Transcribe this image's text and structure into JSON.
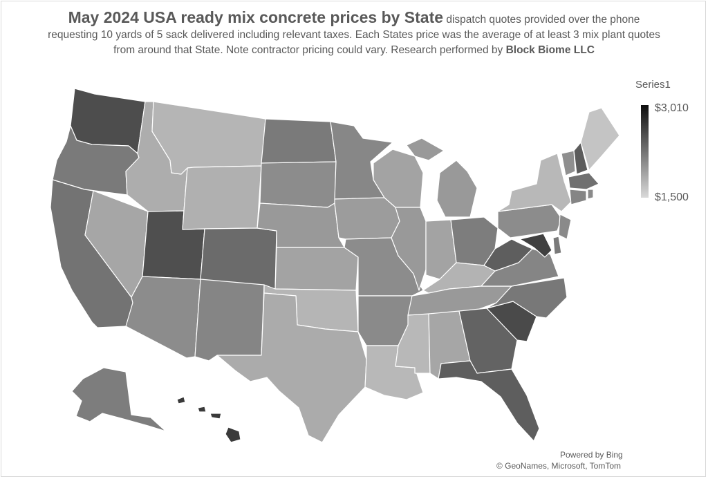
{
  "title": {
    "main": "May 2024 USA ready mix concrete prices by State",
    "sub_line1": " dispatch quotes provided over the phone",
    "sub_line2": "requesting 10 yards of 5 sack delivered including relevant taxes. Each States price was the average of at least 3 mix plant quotes",
    "sub_line3": "from around that State. Note contractor pricing could vary. Research performed by ",
    "brand": "Block Biome LLC"
  },
  "legend": {
    "series_name": "Series1",
    "max_label": "$3,010",
    "min_label": "$1,500",
    "max_color": "#0d0d0d",
    "min_color": "#d9d9d9"
  },
  "credits": {
    "line1": "Powered by Bing",
    "line2": "© GeoNames, Microsoft, TomTom"
  },
  "state_colors": {
    "WA": "#4d4d4d",
    "OR": "#7a7a7a",
    "CA": "#737373",
    "ID": "#adadad",
    "NV": "#a6a6a6",
    "UT": "#4f4f4f",
    "AZ": "#8c8c8c",
    "MT": "#b5b5b5",
    "WY": "#b0b0b0",
    "CO": "#6b6b6b",
    "NM": "#858585",
    "ND": "#7a7a7a",
    "SD": "#8c8c8c",
    "NE": "#999999",
    "KS": "#a3a3a3",
    "OK": "#b5b5b5",
    "TX": "#ababab",
    "MN": "#878787",
    "IA": "#9c9c9c",
    "MO": "#8c8c8c",
    "AR": "#8a8a8a",
    "LA": "#b8b8b8",
    "WI": "#a3a3a3",
    "IL": "#999999",
    "MI": "#999999",
    "IN": "#a3a3a3",
    "OH": "#7d7d7d",
    "KY": "#b3b3b3",
    "TN": "#999999",
    "MS": "#b8b8b8",
    "AL": "#a6a6a6",
    "GA": "#636363",
    "FL": "#5e5e5e",
    "SC": "#4a4a4a",
    "NC": "#787878",
    "VA": "#858585",
    "WV": "#5e5e5e",
    "MD": "#404040",
    "DE": "#7a7a7a",
    "PA": "#8c8c8c",
    "NJ": "#8a8a8a",
    "NY": "#b8b8b8",
    "CT": "#858585",
    "RI": "#8a8a8a",
    "MA": "#707070",
    "VT": "#8f8f8f",
    "NH": "#5c5c5c",
    "ME": "#c4c4c4",
    "AK": "#7d7d7d",
    "HI": "#3a3a3a"
  }
}
